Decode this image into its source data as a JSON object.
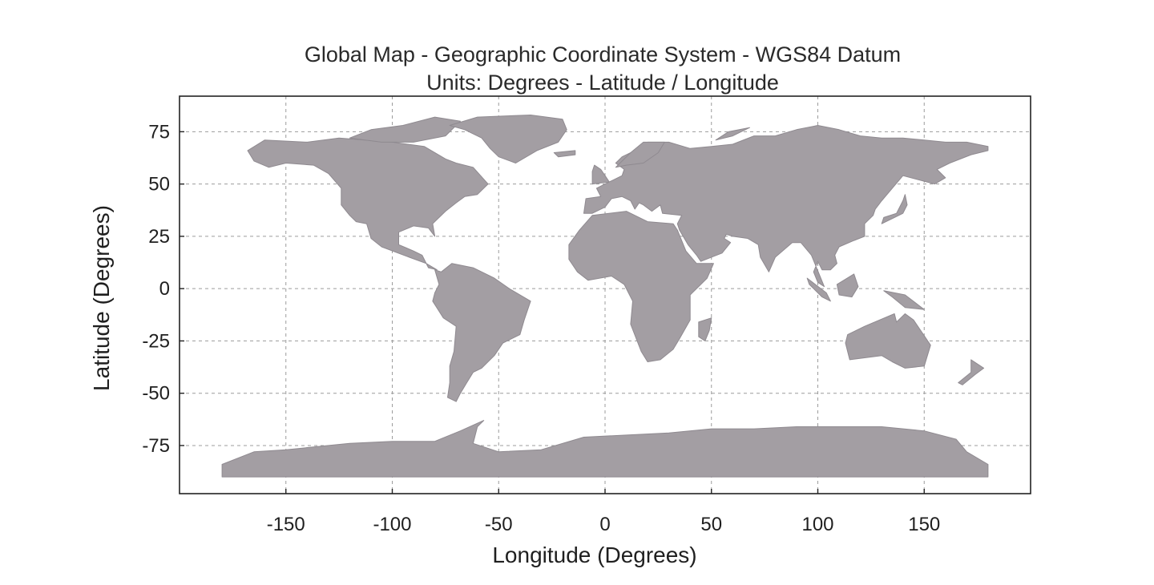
{
  "title": "Global Map - Geographic Coordinate System - WGS84 Datum",
  "subtitle": "Units: Degrees - Latitude / Longitude",
  "x_axis": {
    "label": "Longitude (Degrees)",
    "range": [
      -200,
      200
    ],
    "ticks": [
      -150,
      -100,
      -50,
      0,
      50,
      100,
      150
    ],
    "tick_labels": [
      "-150",
      "-100",
      "-50",
      "0",
      "50",
      "100",
      "150"
    ]
  },
  "y_axis": {
    "label": "Latitude (Degrees)",
    "range": [
      -98,
      92
    ],
    "ticks": [
      75,
      50,
      25,
      0,
      -25,
      -50,
      -75
    ],
    "tick_labels": [
      "75",
      "50",
      "25",
      "0",
      "-25",
      "-50",
      "-75"
    ]
  },
  "grid": true,
  "colors": {
    "land": "#a39ea3",
    "land_stroke": "#8f8a90",
    "grid": "#9c9c9c",
    "frame": "#222222"
  },
  "landmasses": [
    {
      "name": "North America",
      "coords": [
        [
          -168,
          66
        ],
        [
          -160,
          71
        ],
        [
          -140,
          70
        ],
        [
          -125,
          72
        ],
        [
          -100,
          70
        ],
        [
          -85,
          68
        ],
        [
          -75,
          62
        ],
        [
          -70,
          60
        ],
        [
          -62,
          58
        ],
        [
          -55,
          50
        ],
        [
          -60,
          45
        ],
        [
          -66,
          44
        ],
        [
          -70,
          41
        ],
        [
          -75,
          37
        ],
        [
          -81,
          31
        ],
        [
          -80,
          25
        ],
        [
          -83,
          29
        ],
        [
          -90,
          30
        ],
        [
          -97,
          27
        ],
        [
          -97,
          21
        ],
        [
          -90,
          18
        ],
        [
          -86,
          16
        ],
        [
          -83,
          10
        ],
        [
          -79,
          9
        ],
        [
          -84,
          12
        ],
        [
          -92,
          15
        ],
        [
          -105,
          20
        ],
        [
          -110,
          24
        ],
        [
          -112,
          31
        ],
        [
          -117,
          32
        ],
        [
          -120,
          35
        ],
        [
          -124,
          40
        ],
        [
          -124,
          48
        ],
        [
          -130,
          55
        ],
        [
          -137,
          59
        ],
        [
          -150,
          60
        ],
        [
          -158,
          58
        ],
        [
          -165,
          61
        ]
      ]
    },
    {
      "name": "Canadian Arctic Archipelago",
      "coords": [
        [
          -120,
          72
        ],
        [
          -110,
          76
        ],
        [
          -95,
          78
        ],
        [
          -80,
          82
        ],
        [
          -68,
          80
        ],
        [
          -75,
          73
        ],
        [
          -90,
          70
        ],
        [
          -105,
          70
        ]
      ]
    },
    {
      "name": "Greenland",
      "coords": [
        [
          -73,
          78
        ],
        [
          -60,
          82
        ],
        [
          -35,
          83
        ],
        [
          -20,
          81
        ],
        [
          -18,
          76
        ],
        [
          -22,
          70
        ],
        [
          -32,
          66
        ],
        [
          -42,
          60
        ],
        [
          -50,
          63
        ],
        [
          -54,
          67
        ],
        [
          -58,
          72
        ],
        [
          -66,
          76
        ]
      ]
    },
    {
      "name": "South America",
      "coords": [
        [
          -80,
          9
        ],
        [
          -77,
          8
        ],
        [
          -72,
          12
        ],
        [
          -62,
          10
        ],
        [
          -52,
          5
        ],
        [
          -45,
          0
        ],
        [
          -35,
          -6
        ],
        [
          -38,
          -15
        ],
        [
          -40,
          -22
        ],
        [
          -48,
          -26
        ],
        [
          -52,
          -32
        ],
        [
          -58,
          -38
        ],
        [
          -62,
          -40
        ],
        [
          -65,
          -45
        ],
        [
          -68,
          -50
        ],
        [
          -70,
          -54
        ],
        [
          -74,
          -52
        ],
        [
          -73,
          -45
        ],
        [
          -73,
          -37
        ],
        [
          -71,
          -30
        ],
        [
          -70,
          -18
        ],
        [
          -76,
          -14
        ],
        [
          -81,
          -6
        ],
        [
          -80,
          -2
        ],
        [
          -78,
          2
        ]
      ]
    },
    {
      "name": "Africa",
      "coords": [
        [
          -17,
          21
        ],
        [
          -12,
          28
        ],
        [
          -6,
          35
        ],
        [
          10,
          37
        ],
        [
          20,
          32
        ],
        [
          32,
          31
        ],
        [
          34,
          28
        ],
        [
          38,
          18
        ],
        [
          43,
          12
        ],
        [
          51,
          12
        ],
        [
          48,
          5
        ],
        [
          40,
          -3
        ],
        [
          40,
          -15
        ],
        [
          35,
          -24
        ],
        [
          32,
          -29
        ],
        [
          26,
          -34
        ],
        [
          20,
          -35
        ],
        [
          17,
          -30
        ],
        [
          12,
          -17
        ],
        [
          13,
          -6
        ],
        [
          9,
          2
        ],
        [
          3,
          6
        ],
        [
          -8,
          4
        ],
        [
          -13,
          8
        ],
        [
          -17,
          14
        ]
      ]
    },
    {
      "name": "Madagascar",
      "coords": [
        [
          44,
          -16
        ],
        [
          50,
          -14
        ],
        [
          49,
          -20
        ],
        [
          47,
          -25
        ],
        [
          44,
          -23
        ]
      ]
    },
    {
      "name": "Eurasia",
      "coords": [
        [
          -10,
          36
        ],
        [
          -9,
          43
        ],
        [
          -2,
          44
        ],
        [
          -4,
          48
        ],
        [
          0,
          50
        ],
        [
          4,
          52
        ],
        [
          8,
          54
        ],
        [
          9,
          57
        ],
        [
          5,
          60
        ],
        [
          8,
          63
        ],
        [
          14,
          66
        ],
        [
          20,
          70
        ],
        [
          30,
          70
        ],
        [
          40,
          67
        ],
        [
          50,
          68
        ],
        [
          60,
          69
        ],
        [
          70,
          73
        ],
        [
          80,
          73
        ],
        [
          90,
          76
        ],
        [
          100,
          78
        ],
        [
          110,
          76
        ],
        [
          120,
          73
        ],
        [
          130,
          72
        ],
        [
          140,
          72
        ],
        [
          150,
          71
        ],
        [
          160,
          70
        ],
        [
          170,
          70
        ],
        [
          180,
          68
        ],
        [
          180,
          66
        ],
        [
          172,
          64
        ],
        [
          162,
          60
        ],
        [
          156,
          57
        ],
        [
          160,
          53
        ],
        [
          155,
          50
        ],
        [
          140,
          54
        ],
        [
          135,
          48
        ],
        [
          130,
          42
        ],
        [
          127,
          38
        ],
        [
          126,
          35
        ],
        [
          122,
          31
        ],
        [
          122,
          25
        ],
        [
          117,
          23
        ],
        [
          110,
          20
        ],
        [
          108,
          16
        ],
        [
          109,
          12
        ],
        [
          106,
          9
        ],
        [
          102,
          9
        ],
        [
          100,
          13
        ],
        [
          98,
          8
        ],
        [
          100,
          3
        ],
        [
          103,
          1
        ],
        [
          97,
          16
        ],
        [
          92,
          22
        ],
        [
          88,
          22
        ],
        [
          80,
          15
        ],
        [
          77,
          8
        ],
        [
          73,
          15
        ],
        [
          72,
          21
        ],
        [
          67,
          24
        ],
        [
          60,
          25
        ],
        [
          57,
          26
        ],
        [
          56,
          24
        ],
        [
          59,
          22
        ],
        [
          55,
          17
        ],
        [
          45,
          13
        ],
        [
          43,
          16
        ],
        [
          39,
          21
        ],
        [
          35,
          28
        ],
        [
          34,
          31
        ],
        [
          36,
          35
        ],
        [
          27,
          36
        ],
        [
          26,
          40
        ],
        [
          22,
          37
        ],
        [
          18,
          40
        ],
        [
          16,
          41
        ],
        [
          14,
          38
        ],
        [
          12,
          42
        ],
        [
          8,
          44
        ],
        [
          3,
          43
        ],
        [
          0,
          39
        ],
        [
          -6,
          36
        ]
      ]
    },
    {
      "name": "Scandinavian interior",
      "coords": [
        [
          5,
          58
        ],
        [
          10,
          59
        ],
        [
          18,
          60
        ],
        [
          25,
          65
        ],
        [
          28,
          70
        ],
        [
          18,
          70
        ],
        [
          12,
          65
        ]
      ]
    },
    {
      "name": "Great Britain",
      "coords": [
        [
          -6,
          50
        ],
        [
          2,
          51
        ],
        [
          0,
          54
        ],
        [
          -2,
          57
        ],
        [
          -5,
          59
        ],
        [
          -6,
          56
        ]
      ]
    },
    {
      "name": "Iceland",
      "coords": [
        [
          -24,
          65
        ],
        [
          -14,
          66
        ],
        [
          -14,
          64
        ],
        [
          -22,
          63
        ]
      ]
    },
    {
      "name": "Novaya Zemlya",
      "coords": [
        [
          52,
          71
        ],
        [
          58,
          75
        ],
        [
          68,
          77
        ],
        [
          60,
          73
        ]
      ]
    },
    {
      "name": "Japan",
      "coords": [
        [
          130,
          31
        ],
        [
          136,
          34
        ],
        [
          140,
          36
        ],
        [
          142,
          40
        ],
        [
          141,
          45
        ],
        [
          140,
          42
        ],
        [
          137,
          36
        ],
        [
          131,
          34
        ]
      ]
    },
    {
      "name": "Sumatra",
      "coords": [
        [
          95,
          5
        ],
        [
          104,
          -2
        ],
        [
          106,
          -6
        ],
        [
          102,
          -4
        ],
        [
          96,
          2
        ]
      ]
    },
    {
      "name": "Borneo",
      "coords": [
        [
          109,
          2
        ],
        [
          117,
          7
        ],
        [
          119,
          1
        ],
        [
          116,
          -4
        ],
        [
          110,
          -3
        ]
      ]
    },
    {
      "name": "New Guinea",
      "coords": [
        [
          131,
          -1
        ],
        [
          141,
          -3
        ],
        [
          150,
          -10
        ],
        [
          141,
          -9
        ],
        [
          135,
          -4
        ]
      ]
    },
    {
      "name": "Australia",
      "coords": [
        [
          114,
          -22
        ],
        [
          122,
          -18
        ],
        [
          129,
          -15
        ],
        [
          136,
          -12
        ],
        [
          137,
          -16
        ],
        [
          141,
          -12
        ],
        [
          145,
          -15
        ],
        [
          153,
          -27
        ],
        [
          150,
          -37
        ],
        [
          141,
          -38
        ],
        [
          135,
          -35
        ],
        [
          130,
          -32
        ],
        [
          115,
          -34
        ],
        [
          113,
          -26
        ]
      ]
    },
    {
      "name": "New Zealand",
      "coords": [
        [
          172,
          -34
        ],
        [
          178,
          -38
        ],
        [
          174,
          -41
        ],
        [
          168,
          -46
        ],
        [
          166,
          -45
        ],
        [
          172,
          -40
        ]
      ]
    },
    {
      "name": "Antarctica",
      "coords": [
        [
          -180,
          -84
        ],
        [
          -165,
          -78
        ],
        [
          -150,
          -77
        ],
        [
          -120,
          -74
        ],
        [
          -100,
          -73
        ],
        [
          -80,
          -73
        ],
        [
          -68,
          -68
        ],
        [
          -57,
          -63
        ],
        [
          -60,
          -66
        ],
        [
          -62,
          -74
        ],
        [
          -50,
          -78
        ],
        [
          -30,
          -77
        ],
        [
          -10,
          -71
        ],
        [
          10,
          -70
        ],
        [
          30,
          -69
        ],
        [
          50,
          -67
        ],
        [
          70,
          -67
        ],
        [
          90,
          -66
        ],
        [
          110,
          -66
        ],
        [
          130,
          -66
        ],
        [
          150,
          -68
        ],
        [
          165,
          -72
        ],
        [
          170,
          -78
        ],
        [
          180,
          -84
        ],
        [
          180,
          -90
        ],
        [
          -180,
          -90
        ]
      ]
    }
  ]
}
